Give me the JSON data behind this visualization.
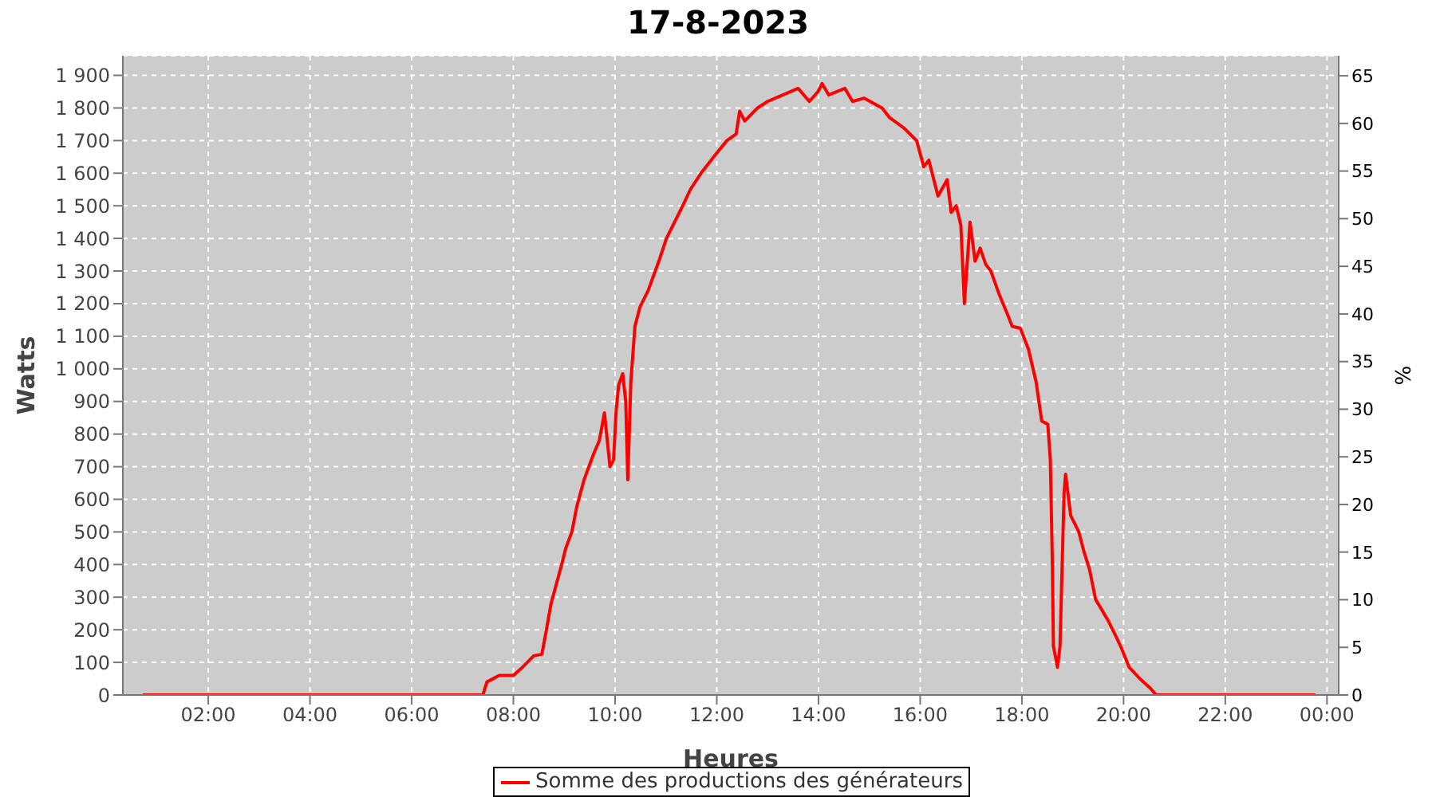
{
  "chart_data": {
    "type": "line",
    "title": "17-8-2023",
    "xlabel": "Heures",
    "ylabel": "Watts",
    "y2label": "%",
    "x": [
      0.71,
      1.5,
      2.5,
      3.5,
      4.5,
      5.5,
      6.5,
      7.4,
      7.48,
      7.72,
      8.0,
      8.18,
      8.4,
      8.56,
      8.65,
      8.74,
      8.95,
      9.03,
      9.15,
      9.25,
      9.39,
      9.58,
      9.69,
      9.79,
      9.9,
      9.97,
      10.02,
      10.07,
      10.15,
      10.21,
      10.25,
      10.31,
      10.39,
      10.49,
      10.65,
      10.86,
      11.01,
      11.17,
      11.33,
      11.48,
      11.69,
      11.99,
      12.2,
      12.38,
      12.45,
      12.55,
      12.8,
      13.0,
      13.3,
      13.6,
      13.82,
      13.99,
      14.07,
      14.2,
      14.52,
      14.67,
      14.9,
      15.25,
      15.4,
      15.67,
      15.93,
      16.07,
      16.17,
      16.35,
      16.53,
      16.61,
      16.71,
      16.8,
      16.87,
      16.98,
      17.08,
      17.18,
      17.29,
      17.39,
      17.55,
      17.71,
      17.81,
      17.97,
      18.13,
      18.28,
      18.39,
      18.51,
      18.56,
      18.6,
      18.62,
      18.7,
      18.75,
      18.83,
      18.86,
      18.96,
      19.12,
      19.22,
      19.33,
      19.45,
      19.69,
      19.85,
      19.96,
      20.11,
      20.32,
      20.53,
      20.64,
      21.5,
      22.5,
      23.77
    ],
    "series": [
      {
        "name": "Somme des productions des  générateurs",
        "color": "#ff0000",
        "values": [
          0,
          0,
          0,
          0,
          0,
          0,
          0,
          0,
          40,
          60,
          60,
          85,
          120,
          125,
          200,
          280,
          400,
          450,
          500,
          580,
          660,
          740,
          780,
          865,
          700,
          720,
          870,
          950,
          985,
          900,
          660,
          960,
          1130,
          1190,
          1240,
          1330,
          1400,
          1450,
          1500,
          1550,
          1600,
          1660,
          1700,
          1720,
          1790,
          1760,
          1800,
          1820,
          1840,
          1860,
          1820,
          1850,
          1875,
          1840,
          1860,
          1820,
          1830,
          1800,
          1770,
          1740,
          1700,
          1620,
          1640,
          1530,
          1580,
          1480,
          1500,
          1440,
          1200,
          1450,
          1330,
          1370,
          1320,
          1300,
          1230,
          1170,
          1130,
          1125,
          1060,
          960,
          840,
          830,
          720,
          400,
          150,
          85,
          150,
          620,
          677,
          550,
          500,
          440,
          385,
          293,
          230,
          180,
          143,
          85,
          50,
          20,
          0,
          0,
          0,
          0
        ]
      }
    ],
    "xlim": [
      0.32,
      24.23
    ],
    "xticks": [
      {
        "value": 2,
        "label": "02:00"
      },
      {
        "value": 4,
        "label": "04:00"
      },
      {
        "value": 6,
        "label": "06:00"
      },
      {
        "value": 8,
        "label": "08:00"
      },
      {
        "value": 10,
        "label": "10:00"
      },
      {
        "value": 12,
        "label": "12:00"
      },
      {
        "value": 14,
        "label": "14:00"
      },
      {
        "value": 16,
        "label": "16:00"
      },
      {
        "value": 18,
        "label": "18:00"
      },
      {
        "value": 20,
        "label": "20:00"
      },
      {
        "value": 22,
        "label": "22:00"
      },
      {
        "value": 24,
        "label": "00:00"
      }
    ],
    "ylim": [
      0,
      1960
    ],
    "yticks": [
      0,
      100,
      200,
      300,
      400,
      500,
      600,
      700,
      800,
      900,
      {
        "value": 1000,
        "label": "1 000"
      },
      {
        "value": 1100,
        "label": "1 100"
      },
      {
        "value": 1200,
        "label": "1 200"
      },
      {
        "value": 1300,
        "label": "1 300"
      },
      {
        "value": 1400,
        "label": "1 400"
      },
      {
        "value": 1500,
        "label": "1 500"
      },
      {
        "value": 1600,
        "label": "1 600"
      },
      {
        "value": 1700,
        "label": "1 700"
      },
      {
        "value": 1800,
        "label": "1 800"
      },
      {
        "value": 1900,
        "label": "1 900"
      }
    ],
    "y2lim": [
      0,
      67.1
    ],
    "y2ticks": [
      0,
      5,
      10,
      15,
      20,
      25,
      30,
      35,
      40,
      45,
      50,
      55,
      60,
      65
    ],
    "grid": true,
    "legend": "bottom",
    "marker": "none",
    "line_style": "solid"
  }
}
